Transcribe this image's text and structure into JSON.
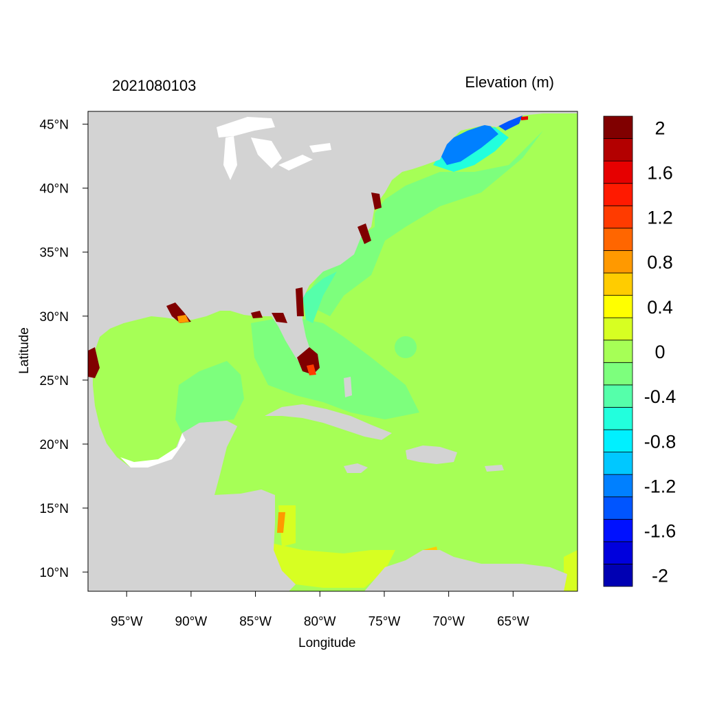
{
  "plot": {
    "left_title": "2021080103",
    "right_title": "Elevation (m)",
    "xlabel": "Longitude",
    "ylabel": "Latitude"
  },
  "map": {
    "lon_range": [
      -98,
      -60
    ],
    "lat_range": [
      8.5,
      46
    ],
    "land_color": "#d3d3d3",
    "ocean_base_color": "#a6ff56",
    "x_ticks": [
      {
        "value": -95,
        "label": "95°W"
      },
      {
        "value": -90,
        "label": "90°W"
      },
      {
        "value": -85,
        "label": "85°W"
      },
      {
        "value": -80,
        "label": "80°W"
      },
      {
        "value": -75,
        "label": "75°W"
      },
      {
        "value": -70,
        "label": "70°W"
      },
      {
        "value": -65,
        "label": "65°W"
      }
    ],
    "y_ticks": [
      {
        "value": 45,
        "label": "45°N"
      },
      {
        "value": 40,
        "label": "40°N"
      },
      {
        "value": 35,
        "label": "35°N"
      },
      {
        "value": 30,
        "label": "30°N"
      },
      {
        "value": 25,
        "label": "25°N"
      },
      {
        "value": 20,
        "label": "20°N"
      },
      {
        "value": 15,
        "label": "15°N"
      },
      {
        "value": 10,
        "label": "10°N"
      }
    ]
  },
  "colorbar": {
    "colors": [
      "#0000b3",
      "#0000dd",
      "#0011ff",
      "#0055ff",
      "#0080ff",
      "#00c8ff",
      "#00f0ff",
      "#22ffdd",
      "#55ffaa",
      "#7dff7d",
      "#a6ff56",
      "#d7ff22",
      "#ffff00",
      "#ffcc00",
      "#ff9900",
      "#ff6600",
      "#ff3b00",
      "#ff1a00",
      "#e60000",
      "#b30000",
      "#800000"
    ],
    "labels": [
      {
        "level": 20,
        "text": "2"
      },
      {
        "level": 18,
        "text": "1.6"
      },
      {
        "level": 16,
        "text": "1.2"
      },
      {
        "level": 14,
        "text": "0.8"
      },
      {
        "level": 12,
        "text": "0.4"
      },
      {
        "level": 10,
        "text": "0"
      },
      {
        "level": 8,
        "text": "-0.4"
      },
      {
        "level": 6,
        "text": "-0.8"
      },
      {
        "level": 4,
        "text": "-1.2"
      },
      {
        "level": 2,
        "text": "-1.6"
      },
      {
        "level": 0,
        "text": "-2"
      }
    ]
  }
}
